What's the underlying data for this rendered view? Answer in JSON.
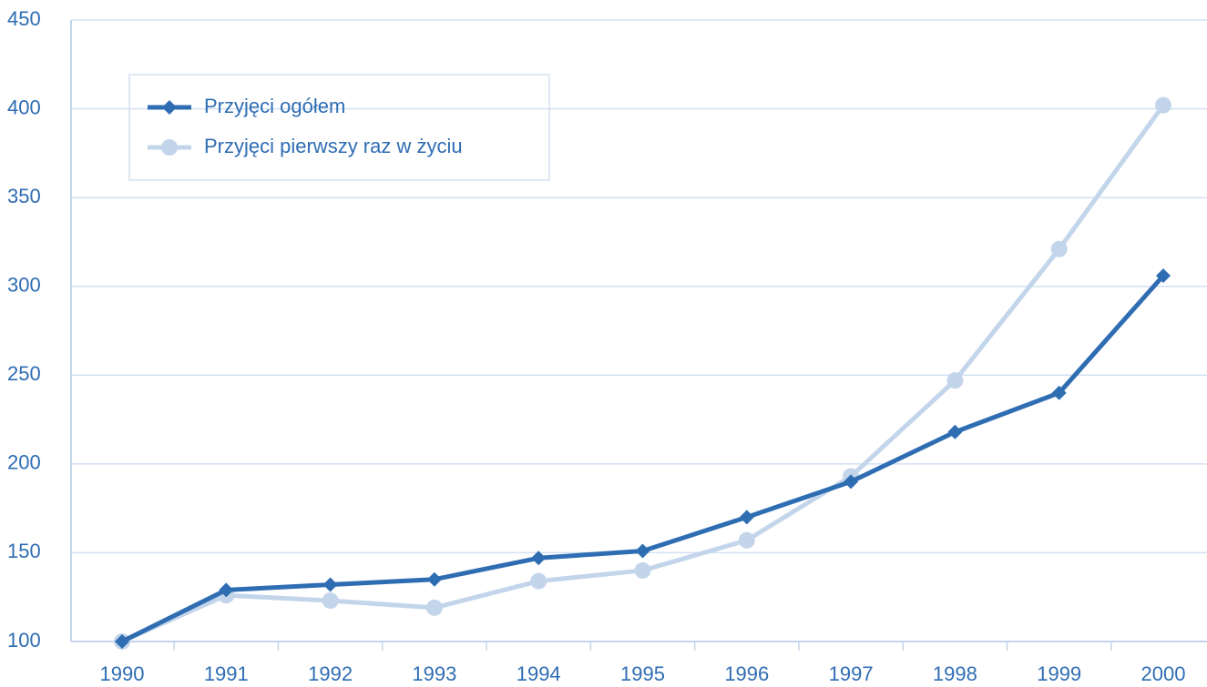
{
  "chart_data": {
    "type": "line",
    "categories": [
      "1990",
      "1991",
      "1992",
      "1993",
      "1994",
      "1995",
      "1996",
      "1997",
      "1998",
      "1999",
      "2000"
    ],
    "series": [
      {
        "name": "Przyjęci ogółem",
        "color": "#2f6db3",
        "marker": "diamond",
        "values": [
          100,
          129,
          132,
          135,
          147,
          151,
          170,
          190,
          218,
          240,
          306
        ]
      },
      {
        "name": "Przyjęci pierwszy raz w życiu",
        "color": "#c3d5ea",
        "marker": "circle",
        "values": [
          100,
          126,
          123,
          119,
          134,
          140,
          157,
          193,
          247,
          321,
          402
        ]
      }
    ],
    "ylim": [
      100,
      450
    ],
    "yticks": [
      100,
      150,
      200,
      250,
      300,
      350,
      400,
      450
    ],
    "grid": true
  }
}
